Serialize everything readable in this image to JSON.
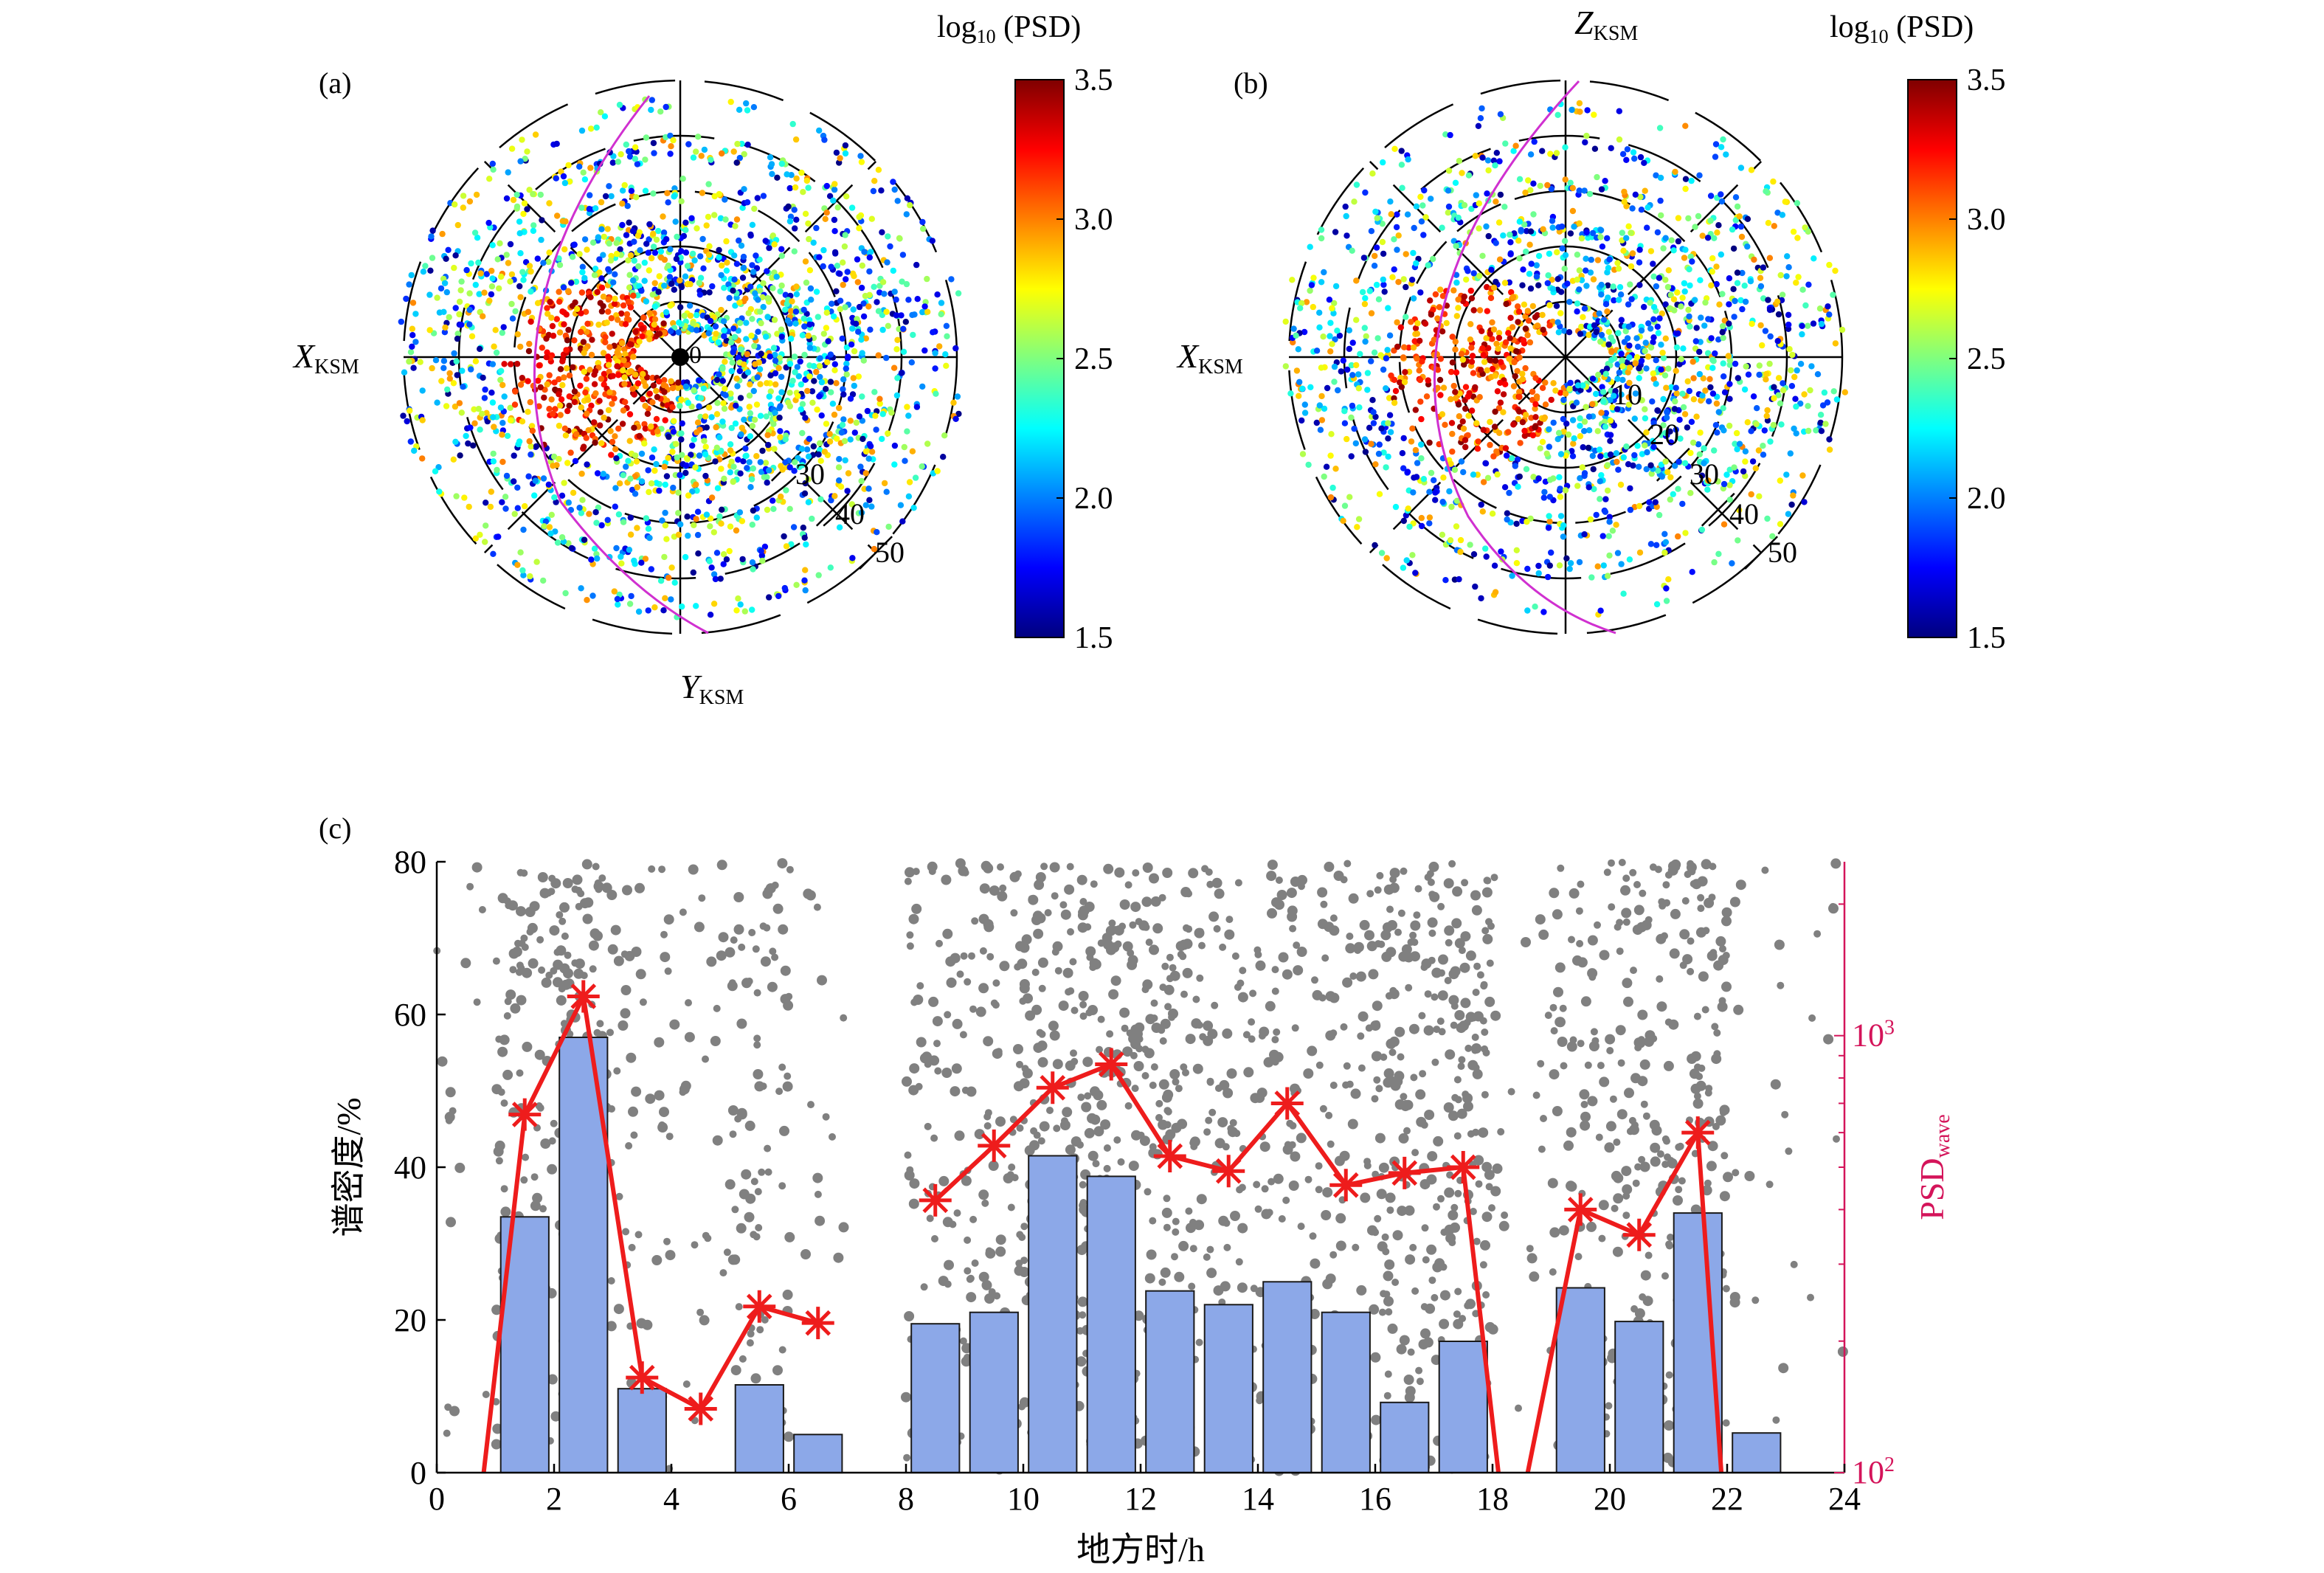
{
  "panel_labels": {
    "a": "(a)",
    "b": "(b)",
    "c": "(c)"
  },
  "polar_axes": {
    "a": {
      "x_axis_main": "X",
      "x_axis_sub": "KSM",
      "y_axis_main": "Y",
      "y_axis_sub": "KSM",
      "origin_label": "0",
      "radius_labels": [
        "30",
        "40",
        "50"
      ]
    },
    "b": {
      "x_axis_main": "X",
      "x_axis_sub": "KSM",
      "z_axis_main": "Z",
      "z_axis_sub": "KSM",
      "radius_labels": [
        "10",
        "20",
        "30",
        "40",
        "50"
      ]
    }
  },
  "colorbar": {
    "title_main": "log",
    "title_sub": "10",
    "title_tail": " (PSD)",
    "ticks": [
      "3.5",
      "3.0",
      "2.5",
      "2.0",
      "1.5"
    ],
    "range": [
      1.5,
      3.5
    ],
    "colormap": [
      "#00007f",
      "#0000ff",
      "#007fff",
      "#00ffff",
      "#7fff7f",
      "#ffff00",
      "#ff7f00",
      "#ff0000",
      "#7f0000"
    ]
  },
  "colors": {
    "bar_fill": "#8ca8e8",
    "bar_edge": "#1a1a1a",
    "line": "#ee1c1c",
    "scatter": "#808080",
    "right_axis": "#d4145a",
    "orbit_boundary": "#d030d0"
  },
  "chart_data": {
    "type": "bar",
    "xlabel": "地方时/h",
    "ylabel": "谱密度/%",
    "y2label_main": "PSD",
    "y2label_sub": "wave",
    "xlim": [
      0,
      24
    ],
    "ylim": [
      0,
      80
    ],
    "y2lim": [
      100,
      2500
    ],
    "y2scale": "log",
    "x_ticks": [
      "0",
      "2",
      "4",
      "6",
      "8",
      "10",
      "12",
      "14",
      "16",
      "18",
      "20",
      "22",
      "24"
    ],
    "y_ticks": [
      "0",
      "20",
      "40",
      "60",
      "80"
    ],
    "y2_ticks": [
      {
        "main": "10",
        "exp": "2",
        "value": 100
      },
      {
        "main": "10",
        "exp": "3",
        "value": 1000
      }
    ],
    "bars": {
      "x": [
        1.5,
        2.5,
        3.5,
        4.5,
        5.5,
        6.5,
        7.5,
        8.5,
        9.5,
        10.5,
        11.5,
        12.5,
        13.5,
        14.5,
        15.5,
        16.5,
        17.5,
        18.5,
        19.5,
        20.5,
        21.5,
        22.5
      ],
      "values": [
        33.5,
        57,
        11,
        0,
        11.5,
        5,
        0,
        19.5,
        21,
        41.5,
        38.8,
        23.8,
        22,
        25,
        21,
        9.2,
        17.2,
        0,
        24.2,
        19.8,
        34,
        5.2
      ]
    },
    "psd_line": {
      "x": [
        0.8,
        1.5,
        2.5,
        3.5,
        4.5,
        5.5,
        6.5
      ],
      "values": [
        100,
        660,
        1230,
        165,
        140,
        240,
        220
      ]
    },
    "psd_line_2": {
      "x": [
        8.5,
        9.5,
        10.5,
        11.5,
        12.5,
        13.5,
        14.5,
        15.5,
        16.5,
        17.5,
        18.1
      ],
      "values": [
        420,
        560,
        760,
        860,
        530,
        490,
        700,
        455,
        485,
        500,
        100
      ]
    },
    "psd_line_3": {
      "x": [
        18.6,
        19.5,
        20.5,
        21.5,
        21.9
      ],
      "values": [
        100,
        400,
        350,
        600,
        100
      ]
    }
  }
}
